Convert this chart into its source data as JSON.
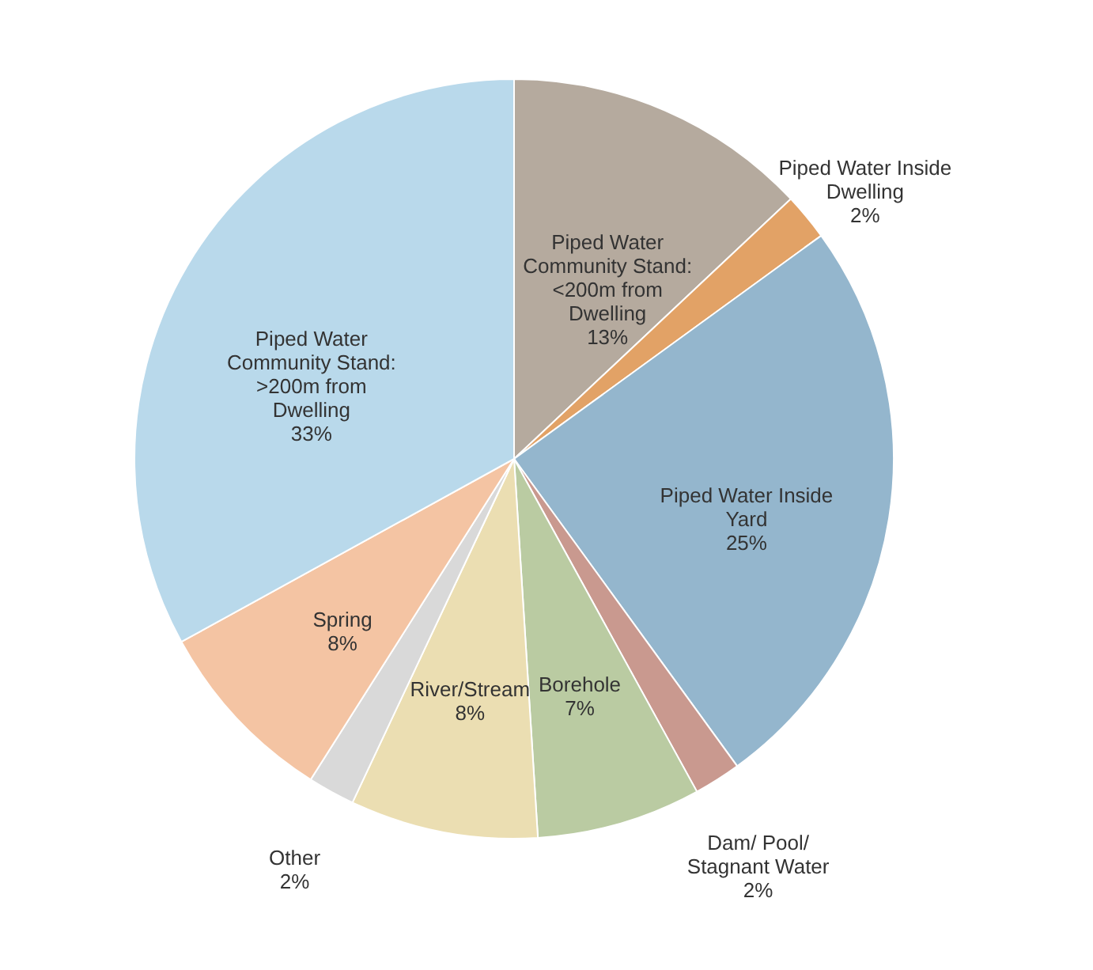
{
  "chart_data": {
    "type": "pie",
    "categories": [
      "Piped Water Community Stand: <200m from Dwelling",
      "Piped Water Inside Dwelling",
      "Piped Water Inside Yard",
      "Dam/ Pool/ Stagnant Water",
      "Borehole",
      "River/Stream",
      "Other",
      "Spring",
      "Piped Water Community Stand: >200m from Dwelling"
    ],
    "values": [
      13,
      2,
      25,
      2,
      7,
      8,
      2,
      8,
      33
    ],
    "value_labels": [
      "13%",
      "2%",
      "25%",
      "2%",
      "7%",
      "8%",
      "2%",
      "8%",
      "33%"
    ],
    "colors": [
      "#b5aa9e",
      "#e2a266",
      "#94b6cd",
      "#c9998f",
      "#bacba2",
      "#ebdeb2",
      "#d9d9d9",
      "#f4c4a3",
      "#b9d9eb"
    ],
    "legend": false
  }
}
